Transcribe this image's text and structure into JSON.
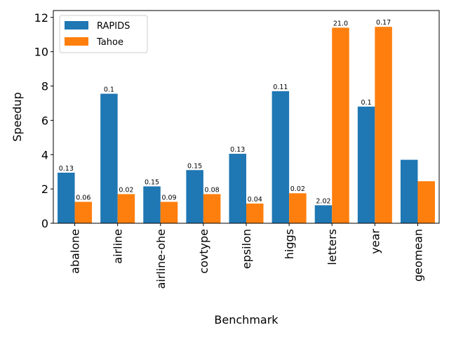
{
  "chart_data": {
    "type": "bar",
    "xlabel": "Benchmark",
    "ylabel": "Speedup",
    "ylim": [
      0,
      12.4
    ],
    "yticks": [
      0,
      2,
      4,
      6,
      8,
      10,
      12
    ],
    "categories": [
      "abalone",
      "airline",
      "airline-ohe",
      "covtype",
      "epsilon",
      "higgs",
      "letters",
      "year",
      "geomean"
    ],
    "series": [
      {
        "name": "RAPIDS",
        "color": "#1f77b4",
        "values": [
          2.95,
          7.55,
          2.15,
          3.1,
          4.05,
          7.7,
          1.05,
          6.8,
          3.7
        ],
        "labels": [
          "0.13",
          "0.1",
          "0.15",
          "0.15",
          "0.13",
          "0.11",
          "2.02",
          "0.1",
          ""
        ]
      },
      {
        "name": "Tahoe",
        "color": "#ff7f0e",
        "values": [
          1.25,
          1.7,
          1.25,
          1.7,
          1.15,
          1.75,
          11.4,
          11.45,
          2.45
        ],
        "labels": [
          "0.06",
          "0.02",
          "0.09",
          "0.08",
          "0.04",
          "0.02",
          "21.0",
          "0.17",
          ""
        ]
      }
    ],
    "legend_position": "top-left",
    "grid": false
  }
}
